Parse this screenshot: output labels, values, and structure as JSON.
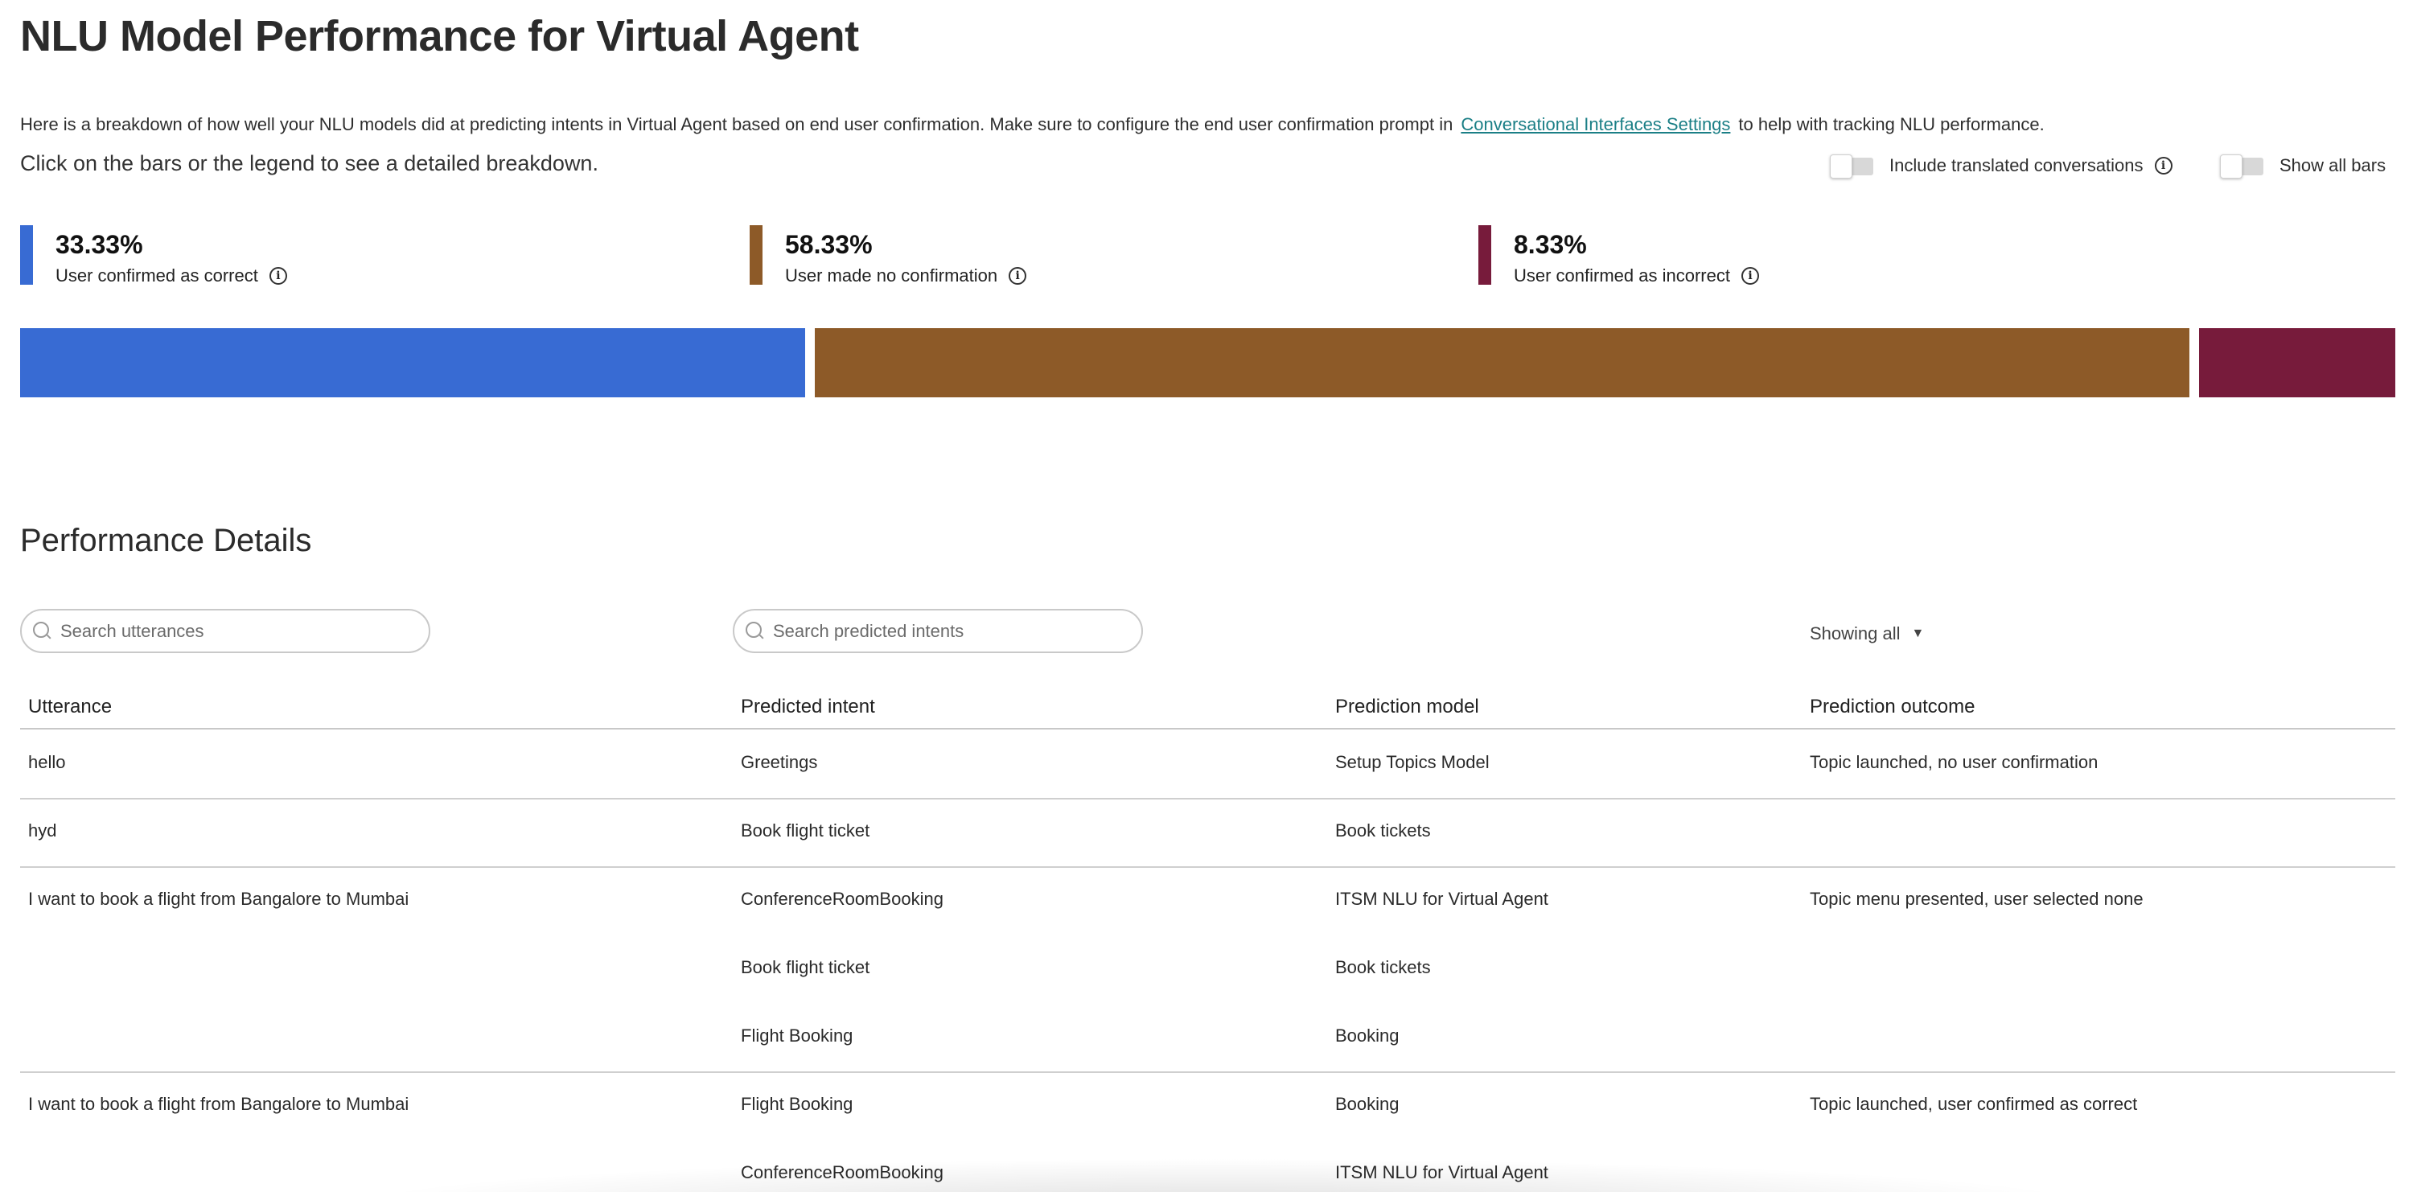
{
  "header": {
    "title": "NLU Model Performance for Virtual Agent",
    "intro_before": "Here is a breakdown of how well your NLU models did at predicting intents in Virtual Agent based on end user confirmation. Make sure to configure the end user confirmation prompt in",
    "intro_link": "Conversational Interfaces Settings",
    "intro_after": "to help with tracking NLU performance.",
    "hint": "Click on the bars or the legend to see a detailed breakdown."
  },
  "toggles": {
    "translated": {
      "label": "Include translated conversations",
      "on": false
    },
    "show_all": {
      "label": "Show all bars",
      "on": false
    }
  },
  "legend": [
    {
      "pct": "33.33%",
      "label": "User confirmed as correct",
      "color": "#386bd3"
    },
    {
      "pct": "58.33%",
      "label": "User made no confirmation",
      "color": "#8d5a28"
    },
    {
      "pct": "8.33%",
      "label": "User confirmed as incorrect",
      "color": "#771b3b"
    }
  ],
  "chart_data": {
    "type": "bar",
    "orientation": "horizontal-stacked",
    "categories": [
      "User confirmed as correct",
      "User made no confirmation",
      "User confirmed as incorrect"
    ],
    "values": [
      33.33,
      58.33,
      8.33
    ],
    "colors": [
      "#386bd3",
      "#8d5a28",
      "#771b3b"
    ]
  },
  "details": {
    "title": "Performance Details",
    "search_utterances_placeholder": "Search utterances",
    "search_intents_placeholder": "Search predicted intents",
    "filter_label": "Showing all",
    "columns": [
      "Utterance",
      "Predicted intent",
      "Prediction model",
      "Prediction outcome"
    ],
    "rows": [
      {
        "utterance": "hello",
        "predictions": [
          {
            "intent": "Greetings",
            "model": "Setup Topics Model"
          }
        ],
        "outcome": "Topic launched, no user confirmation"
      },
      {
        "utterance": "hyd",
        "predictions": [
          {
            "intent": "Book flight ticket",
            "model": "Book tickets"
          }
        ],
        "outcome": ""
      },
      {
        "utterance": "I want to book a flight from Bangalore to Mumbai",
        "predictions": [
          {
            "intent": "ConferenceRoomBooking",
            "model": "ITSM NLU for Virtual Agent"
          },
          {
            "intent": "Book flight ticket",
            "model": "Book tickets"
          },
          {
            "intent": "Flight Booking",
            "model": "Booking"
          }
        ],
        "outcome": "Topic menu presented, user selected none"
      },
      {
        "utterance": "I want to book a flight from Bangalore to Mumbai",
        "predictions": [
          {
            "intent": "Flight Booking",
            "model": "Booking"
          },
          {
            "intent": "ConferenceRoomBooking",
            "model": "ITSM NLU for Virtual Agent"
          }
        ],
        "outcome": "Topic launched, user confirmed as correct"
      }
    ]
  }
}
